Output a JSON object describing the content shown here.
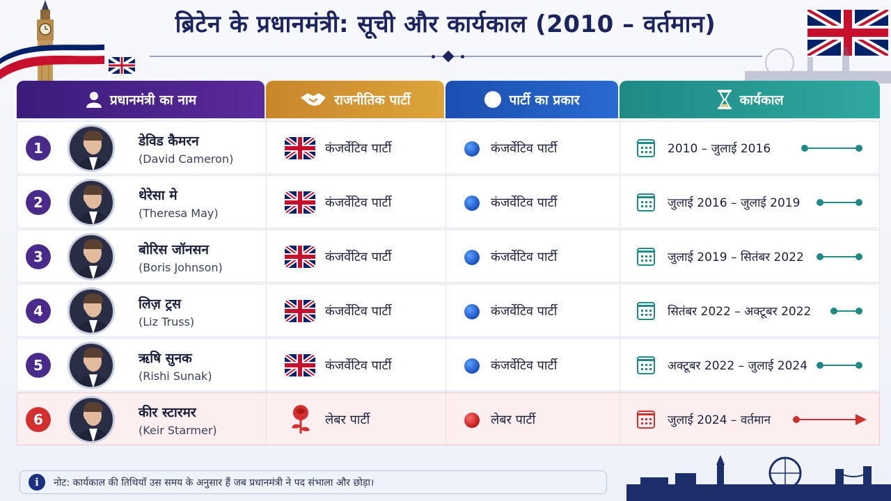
{
  "title": "ब्रिटेन के प्रधानमंत्री: सूची और कार्यकाल (2010 – वर्तमान)",
  "headers": {
    "name": "प्रधानमंत्री का नाम",
    "party": "राजनीतिक पार्टी",
    "type": "पार्टी का प्रकार",
    "term": "कार्यकाल"
  },
  "header_icons": [
    "user-icon",
    "handshake-icon",
    "circle-icon",
    "hourglass-icon"
  ],
  "colors": {
    "purple": "#4a2a8a",
    "gold": "#c9862a",
    "blue": "#1a4fb0",
    "teal": "#1e8a84",
    "red": "#d32f2f"
  },
  "rows": [
    {
      "num": "1",
      "name_hi": "डेविड कैमरन",
      "name_en": "(David Cameron)",
      "party": "कंजर्वेटिव पार्टी",
      "type": "कंजर्वेटिव पार्टी",
      "term": "2010 – जुलाई 2016",
      "current": false
    },
    {
      "num": "2",
      "name_hi": "थेरेसा मे",
      "name_en": "(Theresa May)",
      "party": "कंजर्वेटिव पार्टी",
      "type": "कंजर्वेटिव पार्टी",
      "term": "जुलाई 2016 – जुलाई 2019",
      "current": false
    },
    {
      "num": "3",
      "name_hi": "बोरिस जॉनसन",
      "name_en": "(Boris Johnson)",
      "party": "कंजर्वेटिव पार्टी",
      "type": "कंजर्वेटिव पार्टी",
      "term": "जुलाई 2019 – सितंबर 2022",
      "current": false
    },
    {
      "num": "4",
      "name_hi": "लिज़ ट्रस",
      "name_en": "(Liz Truss)",
      "party": "कंजर्वेटिव पार्टी",
      "type": "कंजर्वेटिव पार्टी",
      "term": "सितंबर 2022 – अक्टूबर 2022",
      "current": false
    },
    {
      "num": "5",
      "name_hi": "ऋषि सुनक",
      "name_en": "(Rishi Sunak)",
      "party": "कंजर्वेटिव पार्टी",
      "type": "कंजर्वेटिव पार्टी",
      "term": "अक्टूबर 2022 – जुलाई 2024",
      "current": false
    },
    {
      "num": "6",
      "name_hi": "कीर स्टारमर",
      "name_en": "(Keir Starmer)",
      "party": "लेबर पार्टी",
      "type": "लेबर पार्टी",
      "term": "जुलाई 2024 – वर्तमान",
      "current": true
    }
  ],
  "note": "नोट: कार्यकाल की तिथियाँ उस समय के अनुसार हैं जब प्रधानमंत्री ने पद संभाला और छोड़ा।"
}
